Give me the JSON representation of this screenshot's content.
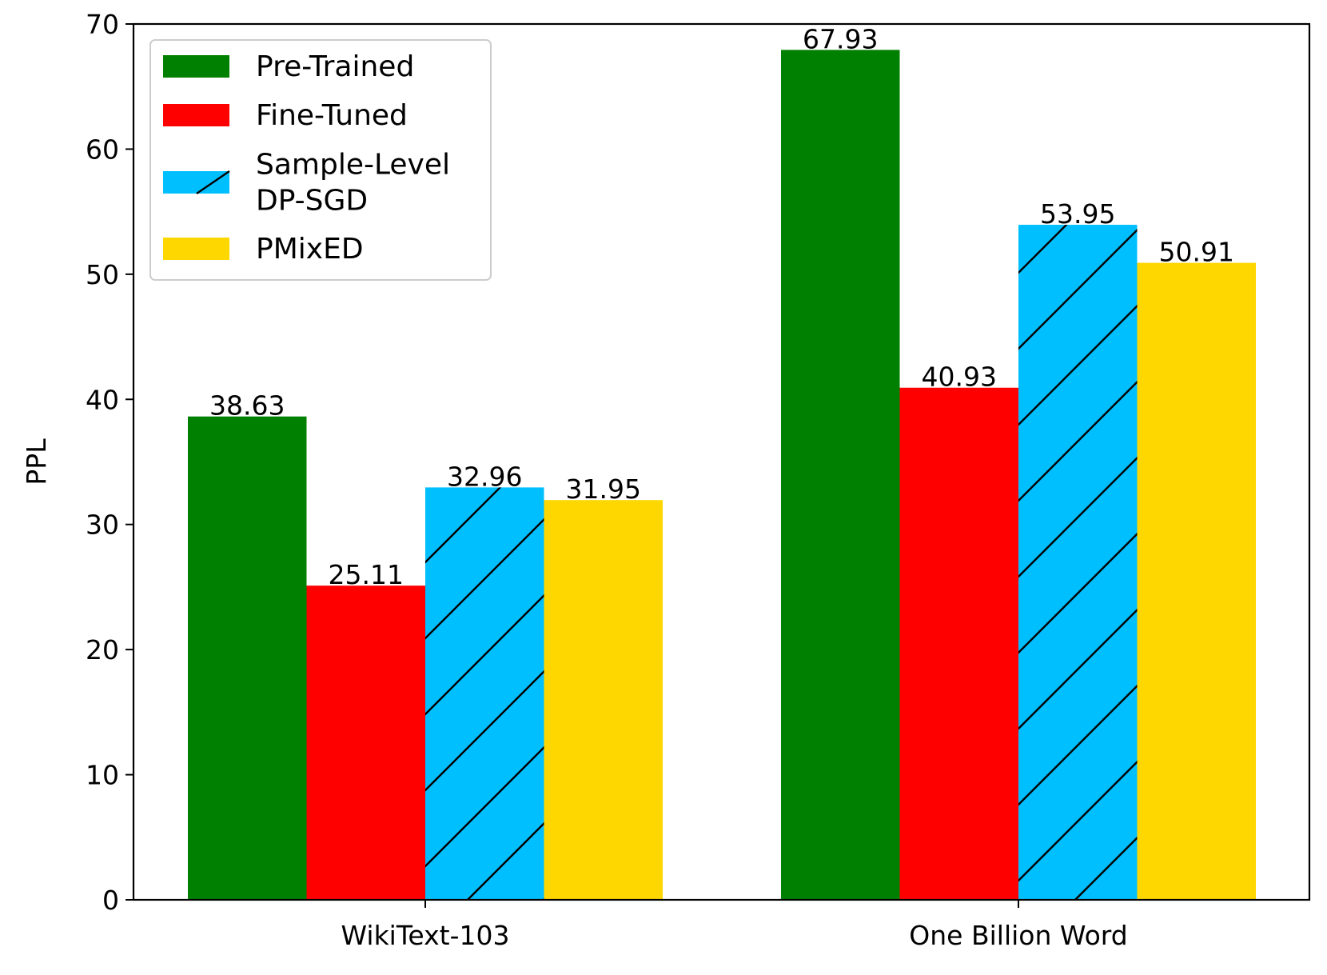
{
  "chart_data": {
    "type": "bar",
    "title": "",
    "xlabel": "",
    "ylabel": "PPL",
    "ylim": [
      0,
      70
    ],
    "yticks": [
      0,
      10,
      20,
      30,
      40,
      50,
      60,
      70
    ],
    "grid": false,
    "legend_position": "top-left",
    "categories": [
      "WikiText-103",
      "One Billion Word"
    ],
    "series": [
      {
        "name": "Pre-Trained",
        "values": [
          38.63,
          67.93
        ],
        "labels": [
          "38.63",
          "67.93"
        ],
        "color": "#008000",
        "hatch": false
      },
      {
        "name": "Fine-Tuned",
        "values": [
          25.11,
          40.93
        ],
        "labels": [
          "25.11",
          "40.93"
        ],
        "color": "#ff0000",
        "hatch": false
      },
      {
        "name": "Sample-Level DP-SGD",
        "name_lines": [
          "Sample-Level",
          "DP-SGD"
        ],
        "values": [
          32.96,
          53.95
        ],
        "labels": [
          "32.96",
          "53.95"
        ],
        "color": "#00bfff",
        "hatch": true
      },
      {
        "name": "PMixED",
        "values": [
          31.95,
          50.91
        ],
        "labels": [
          "31.95",
          "50.91"
        ],
        "color": "#ffd700",
        "hatch": false
      }
    ]
  }
}
